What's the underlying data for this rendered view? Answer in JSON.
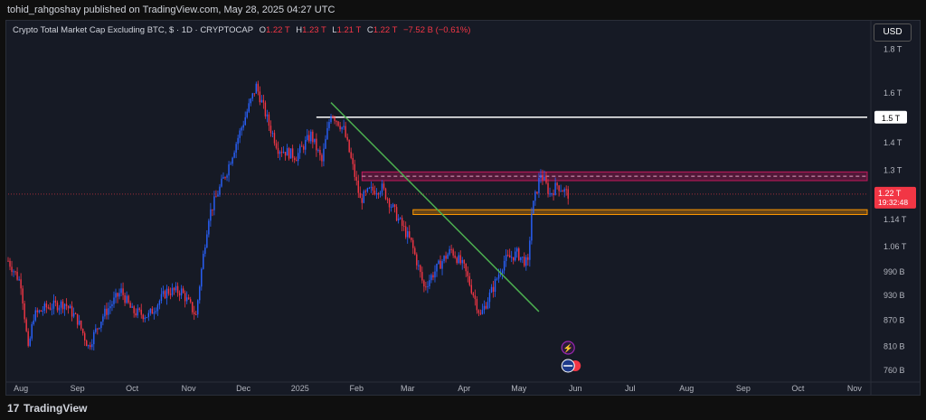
{
  "header": {
    "published": "tohid_rahgoshay published on TradingView.com, May 28, 2025 04:27 UTC"
  },
  "legend": {
    "symbol": "Crypto Total Market Cap Excluding BTC, $ · 1D · CRYPTOCAP",
    "o": "1.22 T",
    "h": "1.23 T",
    "l": "1.21 T",
    "c": "1.22 T",
    "change": "−7.52 B (−0.61%)"
  },
  "currency_button": "USD",
  "footer": {
    "brand": "TradingView"
  },
  "chart_data": {
    "type": "candlestick",
    "title": "Crypto Total Market Cap Excluding BTC, $ · 1D · CRYPTOCAP",
    "x_ticks": [
      "Aug",
      "Sep",
      "Oct",
      "Nov",
      "Dec",
      "2025",
      "Feb",
      "Mar",
      "Apr",
      "May",
      "Jun",
      "Jul",
      "Aug",
      "Sep",
      "Oct",
      "Nov"
    ],
    "y_ticks": [
      "1.8 T",
      "1.6 T",
      "1.4 T",
      "1.3 T",
      "1.14 T",
      "1.06 T",
      "990 B",
      "930 B",
      "870 B",
      "810 B",
      "760 B"
    ],
    "y_log_scale": true,
    "colors": {
      "up": "#2962ff",
      "down": "#f23645",
      "trend": "#4caf50",
      "resistance": "#c2185b",
      "support": "#ff9800",
      "level": "#ffffff"
    },
    "last_price_label": "1.22 T",
    "countdown_label": "19:32:48",
    "level_label": "1.5 T",
    "price_path": [
      [
        "2024-07-25",
        1.02
      ],
      [
        "2024-08-01",
        0.96
      ],
      [
        "2024-08-05",
        0.8
      ],
      [
        "2024-08-08",
        0.88
      ],
      [
        "2024-08-15",
        0.9
      ],
      [
        "2024-08-25",
        0.91
      ],
      [
        "2024-09-01",
        0.87
      ],
      [
        "2024-09-07",
        0.81
      ],
      [
        "2024-09-15",
        0.88
      ],
      [
        "2024-09-25",
        0.94
      ],
      [
        "2024-10-01",
        0.89
      ],
      [
        "2024-10-10",
        0.88
      ],
      [
        "2024-10-20",
        0.94
      ],
      [
        "2024-10-28",
        0.94
      ],
      [
        "2024-11-05",
        0.88
      ],
      [
        "2024-11-12",
        1.15
      ],
      [
        "2024-11-22",
        1.3
      ],
      [
        "2024-12-01",
        1.48
      ],
      [
        "2024-12-08",
        1.63
      ],
      [
        "2024-12-15",
        1.47
      ],
      [
        "2024-12-20",
        1.38
      ],
      [
        "2024-12-30",
        1.35
      ],
      [
        "2025-01-07",
        1.43
      ],
      [
        "2025-01-13",
        1.33
      ],
      [
        "2025-01-18",
        1.52
      ],
      [
        "2025-01-25",
        1.45
      ],
      [
        "2025-02-03",
        1.2
      ],
      [
        "2025-02-08",
        1.23
      ],
      [
        "2025-02-15",
        1.24
      ],
      [
        "2025-02-24",
        1.14
      ],
      [
        "2025-03-03",
        1.07
      ],
      [
        "2025-03-10",
        0.95
      ],
      [
        "2025-03-20",
        1.02
      ],
      [
        "2025-03-25",
        1.05
      ],
      [
        "2025-04-01",
        1.0
      ],
      [
        "2025-04-07",
        0.92
      ],
      [
        "2025-04-10",
        0.88
      ],
      [
        "2025-04-17",
        0.95
      ],
      [
        "2025-04-23",
        1.02
      ],
      [
        "2025-04-30",
        1.04
      ],
      [
        "2025-05-06",
        1.01
      ],
      [
        "2025-05-08",
        1.16
      ],
      [
        "2025-05-13",
        1.29
      ],
      [
        "2025-05-18",
        1.22
      ],
      [
        "2025-05-22",
        1.25
      ],
      [
        "2025-05-28",
        1.22
      ]
    ],
    "levels": {
      "horizontal_line": 1.5,
      "resistance_zone": [
        1.265,
        1.295
      ],
      "support_zone": [
        1.155,
        1.17
      ]
    },
    "trendline": [
      [
        "2025-01-18",
        1.56
      ],
      [
        "2025-05-12",
        0.89
      ]
    ],
    "visible_range": [
      "2024-07-25",
      "2025-11-08"
    ]
  }
}
